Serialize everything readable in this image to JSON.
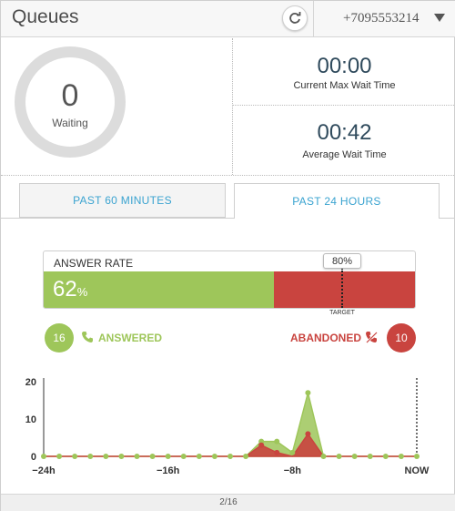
{
  "header": {
    "title": "Queues",
    "phone": "+7095553214"
  },
  "waiting": {
    "count": "0",
    "label": "Waiting"
  },
  "stats": {
    "current_max_wait": {
      "value": "00:00",
      "label": "Current Max Wait Time"
    },
    "average_wait": {
      "value": "00:42",
      "label": "Average Wait Time"
    }
  },
  "tabs": [
    {
      "label": "PAST 60 MINUTES",
      "active": false
    },
    {
      "label": "PAST 24 HOURS",
      "active": true
    }
  ],
  "answer_rate": {
    "title": "ANSWER RATE",
    "value": "62",
    "unit": "%",
    "rate": 0.62,
    "target_text": "80%",
    "target_label": "TARGET",
    "target": 0.8
  },
  "answered": {
    "count": "16",
    "label": "ANSWERED"
  },
  "abandoned": {
    "count": "10",
    "label": "ABANDONED"
  },
  "colors": {
    "green": "#9ec65a",
    "red": "#c9443f",
    "accent": "#3aa3d0"
  },
  "chart_data": {
    "type": "area",
    "x_ticks": [
      "−24h",
      "−16h",
      "−8h",
      "NOW"
    ],
    "y_ticks": [
      "0",
      "10",
      "20"
    ],
    "ylim": [
      0,
      20
    ],
    "series": [
      {
        "name": "ANSWERED",
        "color": "#9ec65a",
        "values": [
          0,
          0,
          0,
          0,
          0,
          0,
          0,
          0,
          0,
          0,
          0,
          0,
          0,
          0,
          4,
          4,
          1,
          17,
          0,
          0,
          0,
          0,
          0,
          0,
          0
        ]
      },
      {
        "name": "ABANDONED",
        "color": "#c9443f",
        "values": [
          0,
          0,
          0,
          0,
          0,
          0,
          0,
          0,
          0,
          0,
          0,
          0,
          0,
          0,
          3,
          1,
          0,
          6,
          0,
          0,
          0,
          0,
          0,
          0,
          0
        ]
      }
    ]
  },
  "footer": {
    "page": "2/16"
  }
}
